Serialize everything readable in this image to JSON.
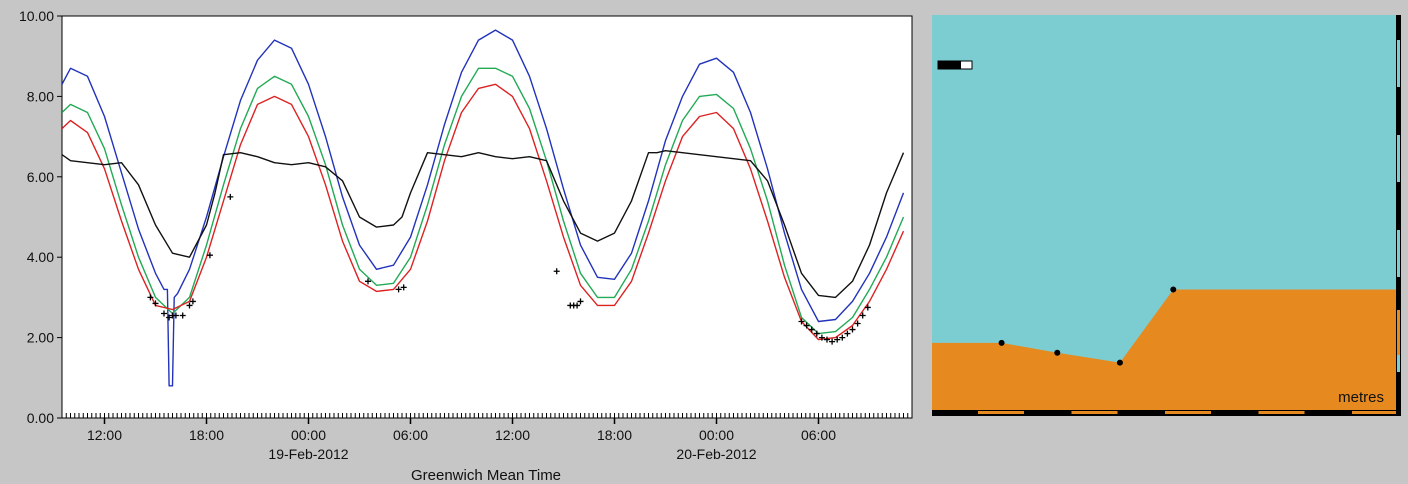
{
  "chart_data": [
    {
      "type": "line",
      "title": "",
      "xlabel": "Greenwich Mean Time",
      "ylabel": "",
      "xlim": [
        9.5,
        59.5
      ],
      "ylim": [
        0,
        10
      ],
      "y_ticks": [
        "0.00",
        "2.00",
        "4.00",
        "6.00",
        "8.00",
        "10.00"
      ],
      "x_ticks": [
        {
          "h": 12,
          "label": "12:00"
        },
        {
          "h": 18,
          "label": "18:00"
        },
        {
          "h": 24,
          "label": "00:00"
        },
        {
          "h": 30,
          "label": "06:00"
        },
        {
          "h": 36,
          "label": "12:00"
        },
        {
          "h": 42,
          "label": "18:00"
        },
        {
          "h": 48,
          "label": "00:00"
        },
        {
          "h": 54,
          "label": "06:00"
        }
      ],
      "date_labels": [
        {
          "h": 24,
          "label": "19-Feb-2012"
        },
        {
          "h": 48,
          "label": "20-Feb-2012"
        }
      ],
      "grid": false,
      "legend": "none",
      "series": [
        {
          "color": "#2233bb",
          "x": [
            9.5,
            10,
            11,
            12,
            13,
            14,
            15,
            15.5,
            15.7,
            15.8,
            16,
            16.1,
            16.3,
            17,
            18,
            19,
            20,
            21,
            22,
            23,
            24,
            25,
            26,
            27,
            28,
            29,
            30,
            31,
            32,
            33,
            34,
            35,
            36,
            37,
            38,
            39,
            40,
            41,
            42,
            43,
            44,
            45,
            46,
            47,
            48,
            49,
            50,
            51,
            52,
            53,
            54,
            55,
            56,
            57,
            58,
            59
          ],
          "y": [
            8.3,
            8.7,
            8.5,
            7.5,
            6.1,
            4.7,
            3.6,
            3.2,
            3.2,
            0.8,
            0.8,
            3.0,
            3.1,
            3.7,
            5.0,
            6.5,
            7.9,
            8.9,
            9.4,
            9.2,
            8.3,
            7.0,
            5.5,
            4.3,
            3.7,
            3.8,
            4.5,
            5.8,
            7.3,
            8.6,
            9.4,
            9.65,
            9.4,
            8.5,
            7.2,
            5.7,
            4.3,
            3.5,
            3.45,
            4.1,
            5.4,
            6.9,
            8.0,
            8.8,
            8.95,
            8.6,
            7.6,
            6.2,
            4.6,
            3.2,
            2.4,
            2.45,
            2.9,
            3.6,
            4.5,
            5.6
          ]
        },
        {
          "color": "#22aa55",
          "x": [
            9.5,
            10,
            11,
            12,
            13,
            14,
            15,
            16,
            17,
            18,
            19,
            20,
            21,
            22,
            23,
            24,
            25,
            26,
            27,
            28,
            29,
            30,
            31,
            32,
            33,
            34,
            35,
            36,
            37,
            38,
            39,
            40,
            41,
            42,
            43,
            44,
            45,
            46,
            47,
            48,
            49,
            50,
            51,
            52,
            53,
            54,
            55,
            56,
            57,
            58,
            59
          ],
          "y": [
            7.6,
            7.8,
            7.6,
            6.7,
            5.3,
            4.0,
            3.0,
            2.6,
            3.0,
            4.3,
            5.8,
            7.2,
            8.2,
            8.5,
            8.3,
            7.5,
            6.3,
            4.8,
            3.7,
            3.3,
            3.35,
            4.0,
            5.3,
            6.8,
            8.0,
            8.7,
            8.7,
            8.5,
            7.7,
            6.4,
            4.9,
            3.6,
            3.0,
            3.0,
            3.7,
            4.9,
            6.3,
            7.4,
            8.0,
            8.05,
            7.7,
            6.7,
            5.4,
            3.8,
            2.5,
            2.1,
            2.15,
            2.5,
            3.2,
            4.0,
            5.0
          ]
        },
        {
          "color": "#dd2222",
          "x": [
            9.5,
            10,
            11,
            12,
            13,
            14,
            15,
            16,
            17,
            18,
            19,
            20,
            21,
            22,
            23,
            24,
            25,
            26,
            27,
            28,
            29,
            30,
            31,
            32,
            33,
            34,
            35,
            36,
            37,
            38,
            39,
            40,
            41,
            42,
            43,
            44,
            45,
            46,
            47,
            48,
            49,
            50,
            51,
            52,
            53,
            54,
            55,
            56,
            57,
            58,
            59
          ],
          "y": [
            7.2,
            7.4,
            7.1,
            6.2,
            4.9,
            3.7,
            2.8,
            2.7,
            2.9,
            4.0,
            5.4,
            6.8,
            7.8,
            8.0,
            7.8,
            7.0,
            5.8,
            4.4,
            3.4,
            3.15,
            3.2,
            3.7,
            4.9,
            6.4,
            7.6,
            8.2,
            8.3,
            8.0,
            7.2,
            5.9,
            4.5,
            3.3,
            2.8,
            2.8,
            3.4,
            4.6,
            5.9,
            7.0,
            7.5,
            7.6,
            7.2,
            6.2,
            4.9,
            3.5,
            2.4,
            1.95,
            2.0,
            2.3,
            2.9,
            3.7,
            4.65
          ]
        },
        {
          "color": "#111111",
          "x": [
            9.5,
            10,
            11,
            12,
            13,
            14,
            15,
            16,
            17,
            18,
            18.5,
            19,
            20,
            21,
            22,
            23,
            24,
            25,
            26,
            27,
            28,
            29,
            29.5,
            30,
            31,
            32,
            33,
            34,
            35,
            36,
            37,
            38,
            39,
            40,
            41,
            42,
            43,
            44,
            44.5,
            45,
            46,
            47,
            48,
            49,
            50,
            51,
            52,
            53,
            54,
            55,
            56,
            57,
            58,
            59
          ],
          "y": [
            6.55,
            6.4,
            6.35,
            6.3,
            6.35,
            5.8,
            4.8,
            4.1,
            4.0,
            4.8,
            5.6,
            6.55,
            6.6,
            6.5,
            6.35,
            6.3,
            6.35,
            6.25,
            5.9,
            5.0,
            4.75,
            4.8,
            5.0,
            5.6,
            6.6,
            6.55,
            6.5,
            6.6,
            6.5,
            6.45,
            6.5,
            6.4,
            5.4,
            4.6,
            4.4,
            4.6,
            5.4,
            6.6,
            6.6,
            6.65,
            6.6,
            6.55,
            6.5,
            6.45,
            6.4,
            5.9,
            4.8,
            3.6,
            3.05,
            3.0,
            3.4,
            4.3,
            5.6,
            6.6
          ]
        }
      ],
      "observations": {
        "marker": "+",
        "x": [
          14.7,
          15.0,
          15.5,
          15.8,
          16.0,
          16.2,
          16.6,
          17.0,
          17.2,
          18.2,
          19.4,
          27.5,
          29.3,
          29.6,
          38.6,
          39.4,
          39.6,
          39.8,
          40.0,
          53.0,
          53.3,
          53.6,
          53.9,
          54.2,
          54.5,
          54.8,
          55.1,
          55.4,
          55.7,
          56.0,
          56.3,
          56.6,
          56.9
        ],
        "y": [
          3.0,
          2.85,
          2.6,
          2.5,
          2.55,
          2.55,
          2.55,
          2.8,
          2.9,
          4.05,
          5.5,
          3.4,
          3.2,
          3.25,
          3.65,
          2.8,
          2.8,
          2.8,
          2.9,
          2.4,
          2.3,
          2.2,
          2.1,
          2.0,
          1.95,
          1.9,
          1.95,
          2.0,
          2.1,
          2.2,
          2.35,
          2.55,
          2.75
        ]
      }
    },
    {
      "type": "area",
      "title": "",
      "xlabel": "",
      "ylabel": "",
      "unit_label": "metres",
      "water_color": "#7ccdd2",
      "bed_color": "#e68a20",
      "xlim": [
        0,
        100
      ],
      "ylim": [
        0,
        100
      ],
      "bed_profile": {
        "x": [
          0,
          15,
          27,
          40.5,
          52,
          100
        ],
        "y": [
          17,
          17,
          14.5,
          12,
          30.5,
          30.5
        ]
      },
      "bed_points": {
        "x": [
          15,
          27,
          40.5,
          52
        ],
        "y": [
          17,
          14.5,
          12,
          30.5
        ]
      }
    }
  ]
}
